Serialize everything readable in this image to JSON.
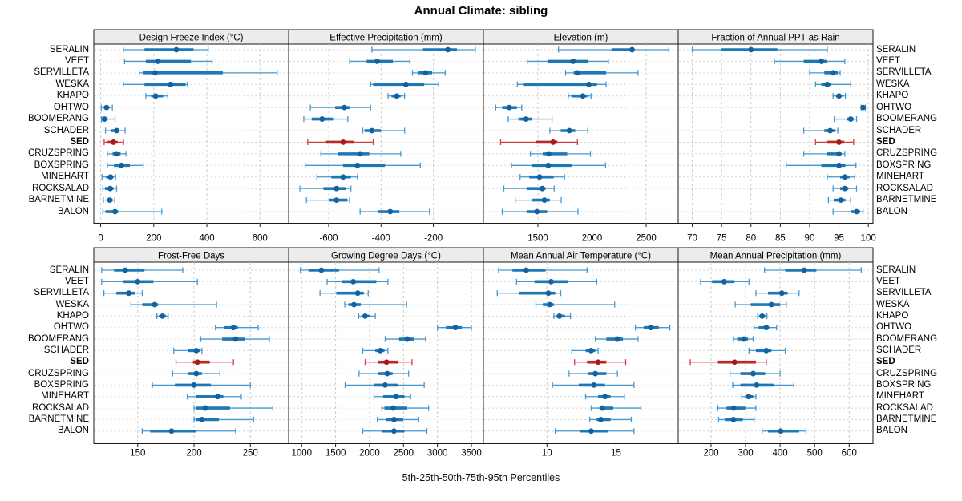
{
  "chart_data": {
    "type": "dotplot",
    "title": "Annual Climate: sibling",
    "caption": "5th-25th-50th-75th-95th Percentiles",
    "percentiles": [
      5,
      25,
      50,
      75,
      95
    ],
    "legend_position": "none",
    "grid": "dashed",
    "sites": [
      "SERALIN",
      "VEET",
      "SERVILLETA",
      "WESKA",
      "KHAPO",
      "OHTWO",
      "BOOMERANG",
      "SCHADER",
      "SED",
      "CRUZSPRING",
      "BOXSPRING",
      "MINEHART",
      "ROCKSALAD",
      "BARNETMINE",
      "BALON"
    ],
    "highlight_site": "SED",
    "colors": {
      "frame": "#1a1a1a",
      "strip_bg": "#ececec",
      "grid": "#cbcbcb",
      "row_guide": "#d6d6d6",
      "normal": {
        "whisker": "#4697cf",
        "box": "#1e78b5",
        "dot": "#13619e"
      },
      "highlight": {
        "whisker": "#d04040",
        "box": "#bf2626",
        "dot": "#a31c1c"
      }
    },
    "panels": [
      {
        "title": "Design Freeze Index (°C)",
        "ticks": [
          0,
          200,
          400,
          600
        ],
        "domain": [
          -26,
          708
        ],
        "values": [
          [
            85,
            165,
            285,
            350,
            405
          ],
          [
            90,
            170,
            215,
            340,
            420
          ],
          [
            145,
            160,
            205,
            460,
            665
          ],
          [
            85,
            165,
            263,
            320,
            327
          ],
          [
            170,
            190,
            207,
            235,
            253
          ],
          [
            2,
            12,
            22,
            32,
            44
          ],
          [
            3,
            8,
            14,
            26,
            54
          ],
          [
            18,
            40,
            60,
            70,
            92
          ],
          [
            13,
            26,
            48,
            64,
            86
          ],
          [
            25,
            45,
            60,
            75,
            95
          ],
          [
            25,
            50,
            78,
            110,
            160
          ],
          [
            5,
            20,
            37,
            48,
            56
          ],
          [
            8,
            16,
            36,
            48,
            60
          ],
          [
            10,
            25,
            34,
            45,
            53
          ],
          [
            8,
            18,
            54,
            66,
            230
          ]
        ]
      },
      {
        "title": "Effective Precipitation (mm)",
        "ticks": [
          -600,
          -400,
          -200
        ],
        "domain": [
          -753,
          -9
        ],
        "values": [
          [
            -435,
            -240,
            -145,
            -110,
            -40
          ],
          [
            -520,
            -455,
            -415,
            -355,
            -290
          ],
          [
            -280,
            -260,
            -230,
            -205,
            -155
          ],
          [
            -440,
            -430,
            -305,
            -235,
            -180
          ],
          [
            -373,
            -360,
            -340,
            -325,
            -310
          ],
          [
            -670,
            -575,
            -540,
            -520,
            -440
          ],
          [
            -695,
            -665,
            -625,
            -580,
            -527
          ],
          [
            -470,
            -463,
            -435,
            -400,
            -310
          ],
          [
            -680,
            -610,
            -545,
            -505,
            -430
          ],
          [
            -630,
            -565,
            -480,
            -445,
            -325
          ],
          [
            -690,
            -545,
            -490,
            -385,
            -250
          ],
          [
            -645,
            -590,
            -545,
            -515,
            -490
          ],
          [
            -710,
            -620,
            -570,
            -535,
            -515
          ],
          [
            -685,
            -600,
            -570,
            -528,
            -520
          ],
          [
            -480,
            -410,
            -365,
            -330,
            -215
          ]
        ]
      },
      {
        "title": "Elevation (m)",
        "ticks": [
          1500,
          2000,
          2500
        ],
        "domain": [
          996,
          2796
        ],
        "values": [
          [
            1690,
            2180,
            2370,
            2390,
            2710
          ],
          [
            1400,
            1595,
            1825,
            1960,
            2150
          ],
          [
            1755,
            1830,
            1865,
            2130,
            2425
          ],
          [
            1310,
            1370,
            1970,
            2045,
            2130
          ],
          [
            1780,
            1810,
            1915,
            1955,
            1990
          ],
          [
            1110,
            1170,
            1235,
            1305,
            1350
          ],
          [
            1225,
            1320,
            1390,
            1445,
            1630
          ],
          [
            1610,
            1710,
            1790,
            1845,
            1960
          ],
          [
            1155,
            1485,
            1640,
            1680,
            1865
          ],
          [
            1430,
            1545,
            1600,
            1770,
            1985
          ],
          [
            1255,
            1445,
            1595,
            1810,
            2125
          ],
          [
            1335,
            1420,
            1515,
            1645,
            1745
          ],
          [
            1185,
            1395,
            1540,
            1570,
            1650
          ],
          [
            1290,
            1445,
            1560,
            1610,
            1715
          ],
          [
            1170,
            1395,
            1490,
            1585,
            1870
          ]
        ]
      },
      {
        "title": "Fraction of Annual PPT as Rain",
        "ticks": [
          70,
          75,
          80,
          85,
          90,
          95,
          100
        ],
        "domain": [
          67.6,
          100.8
        ],
        "values": [
          [
            70,
            75,
            80,
            84.5,
            93
          ],
          [
            84,
            89,
            92,
            93,
            96
          ],
          [
            90,
            92.5,
            94,
            94.8,
            95.2
          ],
          [
            91,
            92,
            93,
            93.7,
            97
          ],
          [
            94,
            94.5,
            95,
            95.5,
            96.1
          ],
          [
            98.8,
            99,
            99.1,
            99.3,
            99.5
          ],
          [
            94.2,
            96.4,
            97,
            97.5,
            98
          ],
          [
            89,
            92.5,
            93.5,
            94.3,
            94.8
          ],
          [
            91,
            93,
            95,
            95.9,
            97.5
          ],
          [
            89,
            93,
            95,
            95.3,
            96
          ],
          [
            86,
            92,
            95,
            96.1,
            97.9
          ],
          [
            93,
            95.2,
            96,
            96.8,
            97.7
          ],
          [
            94,
            95.2,
            96,
            96.6,
            98
          ],
          [
            93.2,
            94.1,
            95.3,
            96.1,
            97
          ],
          [
            94,
            97,
            98,
            98.6,
            99.1
          ]
        ]
      },
      {
        "title": "Frost-Free Days",
        "ticks": [
          150,
          200,
          250
        ],
        "domain": [
          111,
          284
        ],
        "values": [
          [
            118,
            129,
            139,
            156,
            190
          ],
          [
            118,
            137,
            150,
            164,
            203
          ],
          [
            120,
            131,
            142,
            148,
            154
          ],
          [
            144,
            154,
            165,
            168,
            220
          ],
          [
            167,
            169,
            172,
            175,
            177
          ],
          [
            219,
            227,
            235,
            239,
            257
          ],
          [
            206,
            225,
            237,
            245,
            267
          ],
          [
            182,
            195,
            202,
            205,
            207
          ],
          [
            184,
            199,
            203,
            214,
            235
          ],
          [
            181,
            195,
            202,
            207,
            223
          ],
          [
            163,
            183,
            200,
            215,
            250
          ],
          [
            194,
            202,
            221,
            226,
            242
          ],
          [
            200,
            202,
            210,
            232,
            270
          ],
          [
            200,
            202,
            207,
            222,
            253
          ],
          [
            154,
            161,
            180,
            202,
            237
          ]
        ]
      },
      {
        "title": "Growing Degree Days (°C)",
        "ticks": [
          1000,
          1500,
          2000,
          2500,
          3000,
          3500
        ],
        "domain": [
          808,
          3677
        ],
        "values": [
          [
            980,
            1100,
            1290,
            1550,
            2140
          ],
          [
            1375,
            1590,
            1760,
            2100,
            2270
          ],
          [
            1270,
            1510,
            1825,
            1915,
            1980
          ],
          [
            1635,
            1690,
            1770,
            1870,
            2545
          ],
          [
            1840,
            1885,
            1935,
            2005,
            2085
          ],
          [
            3000,
            3125,
            3265,
            3360,
            3500
          ],
          [
            2230,
            2435,
            2555,
            2655,
            2825
          ],
          [
            1900,
            2085,
            2160,
            2220,
            2270
          ],
          [
            1935,
            2120,
            2250,
            2415,
            2625
          ],
          [
            1845,
            2120,
            2260,
            2340,
            2575
          ],
          [
            1640,
            2065,
            2230,
            2415,
            2805
          ],
          [
            2065,
            2200,
            2390,
            2515,
            2605
          ],
          [
            2180,
            2220,
            2350,
            2555,
            2870
          ],
          [
            2115,
            2240,
            2360,
            2495,
            2725
          ],
          [
            1900,
            2180,
            2360,
            2515,
            2845
          ]
        ]
      },
      {
        "title": "Mean Annual Air Temperature (°C)",
        "ticks": [
          10,
          15
        ],
        "domain": [
          5.4,
          19.5
        ],
        "values": [
          [
            6.5,
            7.5,
            8.5,
            9.9,
            12.9
          ],
          [
            7.8,
            9.1,
            10.3,
            11.5,
            13.6
          ],
          [
            6.4,
            8.0,
            10.1,
            10.6,
            11.0
          ],
          [
            9.2,
            9.7,
            10.2,
            10.5,
            14.9
          ],
          [
            10.5,
            10.7,
            10.9,
            11.3,
            11.7
          ],
          [
            16.4,
            17.0,
            17.5,
            18.1,
            18.9
          ],
          [
            13.5,
            14.3,
            15.1,
            15.5,
            16.6
          ],
          [
            11.8,
            12.8,
            13.2,
            13.5,
            13.7
          ],
          [
            12.0,
            12.9,
            13.7,
            14.3,
            15.7
          ],
          [
            11.6,
            13.0,
            13.5,
            14.3,
            15.1
          ],
          [
            10.4,
            12.3,
            13.4,
            14.2,
            16.3
          ],
          [
            12.8,
            13.7,
            14.2,
            14.6,
            15.6
          ],
          [
            13.2,
            13.8,
            14.0,
            14.8,
            16.8
          ],
          [
            13.1,
            13.6,
            13.9,
            14.6,
            16.1
          ],
          [
            10.6,
            12.4,
            13.2,
            14.4,
            16.3
          ]
        ]
      },
      {
        "title": "Mean Annual Precipitation (mm)",
        "ticks": [
          200,
          300,
          400,
          500,
          600
        ],
        "domain": [
          105,
          669
        ],
        "values": [
          [
            355,
            415,
            470,
            505,
            635
          ],
          [
            170,
            203,
            238,
            268,
            310
          ],
          [
            330,
            365,
            405,
            422,
            455
          ],
          [
            270,
            315,
            375,
            400,
            418
          ],
          [
            335,
            340,
            348,
            357,
            362
          ],
          [
            325,
            338,
            360,
            368,
            390
          ],
          [
            265,
            276,
            295,
            307,
            322
          ],
          [
            310,
            330,
            360,
            375,
            415
          ],
          [
            140,
            220,
            268,
            330,
            360
          ],
          [
            255,
            285,
            322,
            357,
            400
          ],
          [
            263,
            285,
            332,
            382,
            440
          ],
          [
            289,
            299,
            309,
            322,
            330
          ],
          [
            220,
            245,
            266,
            299,
            330
          ],
          [
            222,
            240,
            265,
            292,
            325
          ],
          [
            348,
            365,
            402,
            455,
            475
          ]
        ]
      }
    ]
  }
}
